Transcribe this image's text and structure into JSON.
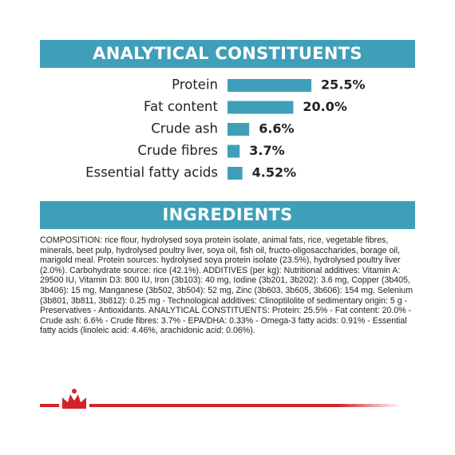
{
  "chart_data": {
    "type": "bar",
    "title": "ANALYTICAL CONSTITUENTS",
    "categories": [
      "Protein",
      "Fat content",
      "Crude ash",
      "Crude fibres",
      "Essential fatty acids"
    ],
    "values": [
      25.5,
      20.0,
      6.6,
      3.7,
      4.52
    ],
    "value_labels": [
      "25.5%",
      "20.0%",
      "6.6%",
      "3.7%",
      "4.52%"
    ],
    "color": "#3f9fb8"
  },
  "ingredients": {
    "title": "INGREDIENTS",
    "text": "COMPOSITION: rice flour, hydrolysed soya protein isolate, animal fats, rice, vegetable fibres, minerals, beet pulp, hydrolysed poultry liver, soya oil, fish oil, fructo-oligosaccharides, borage oil, marigold meal. Protein sources: hydrolysed soya protein isolate (23.5%), hydrolysed poultry liver (2.0%). Carbohydrate source: rice (42.1%). ADDITIVES (per kg): Nutritional additives: Vitamin A: 29500 IU, Vitamin D3: 800 IU, Iron (3b103): 40 mg, Iodine (3b201, 3b202): 3.6 mg, Copper (3b405, 3b406): 15 mg, Manganese (3b502, 3b504): 52 mg, Zinc (3b603, 3b605, 3b606): 154 mg, Selenium (3b801, 3b811, 3b812): 0.25 mg - Technological additives: Clinoptilolite of sedimentary origin: 5 g - Preservatives - Antioxidants. ANALYTICAL CONSTITUENTS: Protein: 25.5% - Fat content: 20.0% - Crude ash: 6.6% - Crude fibres: 3.7% - EPA/DHA: 0.33% - Omega-3 fatty acids: 0.91% - Essential fatty acids (linoleic acid: 4.46%, arachidonic acid: 0.06%)."
  }
}
